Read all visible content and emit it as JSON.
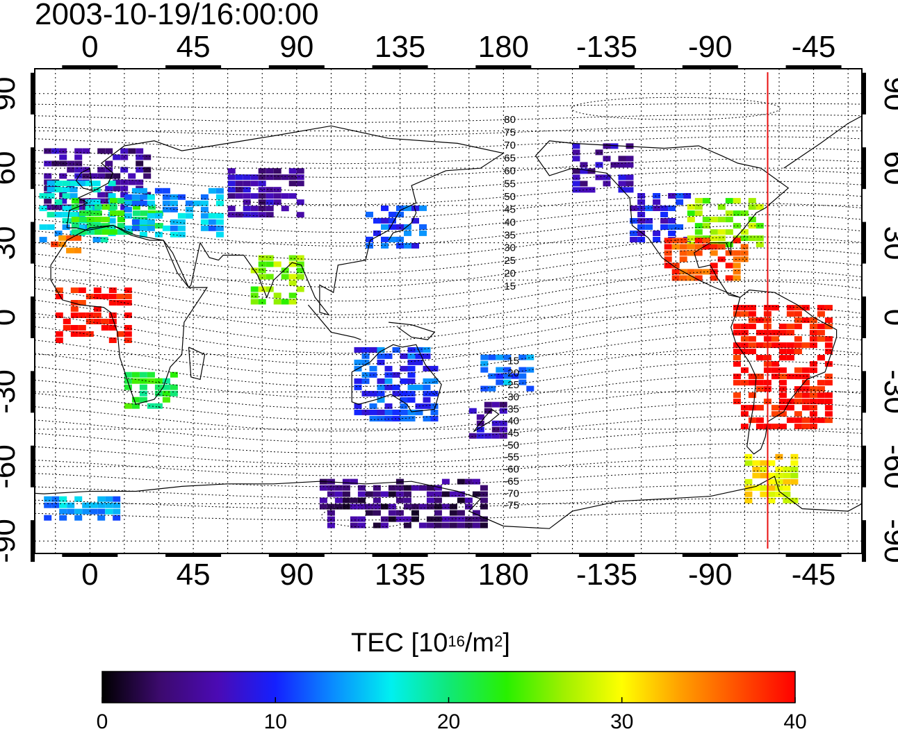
{
  "timestamp": "2003-10-19/16:00:00",
  "map": {
    "projection": "equirectangular",
    "lon_range": [
      -24,
      336
    ],
    "lat_range": [
      -95,
      100
    ],
    "longitude_ticks": [
      "0",
      "45",
      "90",
      "135",
      "180",
      "-135",
      "-90",
      "-45"
    ],
    "latitude_ticks": [
      "90",
      "60",
      "30",
      "0",
      "-30",
      "-60",
      "-90"
    ],
    "meridian_marker": {
      "lon": 295,
      "color": "#e81010"
    },
    "magnetic_latitude_labels_north": [
      "80",
      "75",
      "70",
      "65",
      "60",
      "55",
      "50",
      "45",
      "40",
      "35",
      "30",
      "25",
      "20",
      "15"
    ],
    "magnetic_latitude_labels_south": [
      "-15",
      "-20",
      "-25",
      "-30",
      "-35",
      "-40",
      "-45",
      "-50",
      "-55",
      "-60",
      "-65",
      "-70",
      "-75"
    ]
  },
  "colorbar": {
    "title": "TEC  [10",
    "title_exp1": "16",
    "title_mid": "/m",
    "title_exp2": "2",
    "title_end": "]",
    "min": 0,
    "max": 40,
    "ticks": [
      "0",
      "10",
      "20",
      "30",
      "40"
    ],
    "colormap": [
      "#000000",
      "#3c0a6e",
      "#4b0ab4",
      "#1420ff",
      "#0a8cff",
      "#00f0f0",
      "#10e878",
      "#28f000",
      "#a0f000",
      "#ffff00",
      "#ffa000",
      "#ff5000",
      "#ff0000"
    ]
  },
  "chart_data": {
    "type": "heatmap",
    "title": "2003-10-19/16:00:00",
    "xlabel": "",
    "ylabel": "",
    "value_label": "TEC [10^16/m^2]",
    "value_range": [
      0,
      40
    ],
    "regions": [
      {
        "lon": [
          -20,
          25
        ],
        "lat": [
          45,
          68
        ],
        "tec": 5
      },
      {
        "lon": [
          -22,
          10
        ],
        "lat": [
          32,
          55
        ],
        "tec": 16
      },
      {
        "lon": [
          -8,
          30
        ],
        "lat": [
          35,
          48
        ],
        "tec": 22
      },
      {
        "lon": [
          15,
          55
        ],
        "lat": [
          33,
          52
        ],
        "tec": 14
      },
      {
        "lon": [
          -17,
          -5
        ],
        "lat": [
          27,
          33
        ],
        "tec": 35
      },
      {
        "lon": [
          15,
          35
        ],
        "lat": [
          -36,
          -22
        ],
        "tec": 22
      },
      {
        "lon": [
          -15,
          15
        ],
        "lat": [
          -10,
          12
        ],
        "tec": 40
      },
      {
        "lon": [
          60,
          90
        ],
        "lat": [
          40,
          60
        ],
        "tec": 6
      },
      {
        "lon": [
          120,
          145
        ],
        "lat": [
          28,
          45
        ],
        "tec": 11
      },
      {
        "lon": [
          70,
          90
        ],
        "lat": [
          5,
          25
        ],
        "tec": 26
      },
      {
        "lon": [
          115,
          150
        ],
        "lat": [
          -40,
          -12
        ],
        "tec": 11
      },
      {
        "lon": [
          165,
          180
        ],
        "lat": [
          -47,
          -34
        ],
        "tec": 6
      },
      {
        "lon": [
          170,
          190
        ],
        "lat": [
          -30,
          -15
        ],
        "tec": 13
      },
      {
        "lon": [
          210,
          235
        ],
        "lat": [
          50,
          70
        ],
        "tec": 6
      },
      {
        "lon": [
          235,
          260
        ],
        "lat": [
          30,
          50
        ],
        "tec": 9
      },
      {
        "lon": [
          260,
          290
        ],
        "lat": [
          30,
          48
        ],
        "tec": 26
      },
      {
        "lon": [
          250,
          285
        ],
        "lat": [
          15,
          32
        ],
        "tec": 37
      },
      {
        "lon": [
          280,
          320
        ],
        "lat": [
          -45,
          5
        ],
        "tec": 40
      },
      {
        "lon": [
          285,
          305
        ],
        "lat": [
          -75,
          -55
        ],
        "tec": 30
      },
      {
        "lon": [
          100,
          170
        ],
        "lat": [
          -85,
          -65
        ],
        "tec": 4
      },
      {
        "lon": [
          -20,
          10
        ],
        "lat": [
          -80,
          -72
        ],
        "tec": 14
      }
    ]
  }
}
